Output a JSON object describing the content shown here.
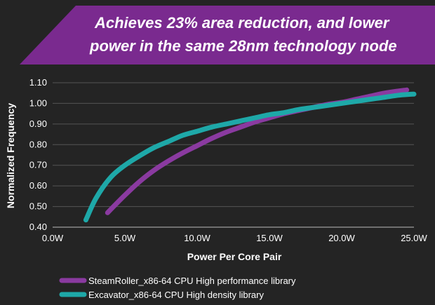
{
  "banner": {
    "line1": "Achieves 23% area reduction, and lower",
    "line2": "power  in the same 28nm technology node",
    "color": "#7a2a8f"
  },
  "chart_data": {
    "type": "line",
    "xlabel": "Power Per Core Pair",
    "ylabel": "Normalized Frequency",
    "xlim": [
      0,
      25
    ],
    "ylim": [
      0.4,
      1.1
    ],
    "x_ticks": [
      "0.0W",
      "5.0W",
      "10.0W",
      "15.0W",
      "20.0W",
      "25.0W"
    ],
    "y_ticks": [
      "0.40",
      "0.50",
      "0.60",
      "0.70",
      "0.80",
      "0.90",
      "1.00",
      "1.10"
    ],
    "grid": "horizontal",
    "legend_position": "bottom-left",
    "series": [
      {
        "name": "SteamRoller_x86-64 CPU High performance library",
        "color": "#8a3aa0",
        "x": [
          3.8,
          5,
          6,
          7,
          8,
          9,
          10,
          11,
          12,
          13,
          14,
          15,
          16,
          17,
          18,
          19,
          20,
          21,
          22,
          23,
          24.5
        ],
        "y": [
          0.47,
          0.555,
          0.62,
          0.675,
          0.72,
          0.76,
          0.795,
          0.83,
          0.86,
          0.885,
          0.91,
          0.93,
          0.95,
          0.965,
          0.98,
          0.995,
          1.005,
          1.02,
          1.035,
          1.05,
          1.065
        ]
      },
      {
        "name": "Excavator_x86-64 CPU High density library",
        "color": "#1ea8a8",
        "x": [
          2.3,
          3,
          4,
          5,
          6,
          7,
          8,
          9,
          10,
          11,
          12,
          13,
          14,
          15,
          16,
          17,
          18,
          19,
          20,
          21,
          22,
          23,
          24,
          25
        ],
        "y": [
          0.435,
          0.54,
          0.64,
          0.7,
          0.745,
          0.785,
          0.815,
          0.845,
          0.865,
          0.885,
          0.9,
          0.915,
          0.93,
          0.945,
          0.955,
          0.97,
          0.98,
          0.99,
          1.0,
          1.01,
          1.02,
          1.03,
          1.04,
          1.045
        ]
      }
    ]
  }
}
